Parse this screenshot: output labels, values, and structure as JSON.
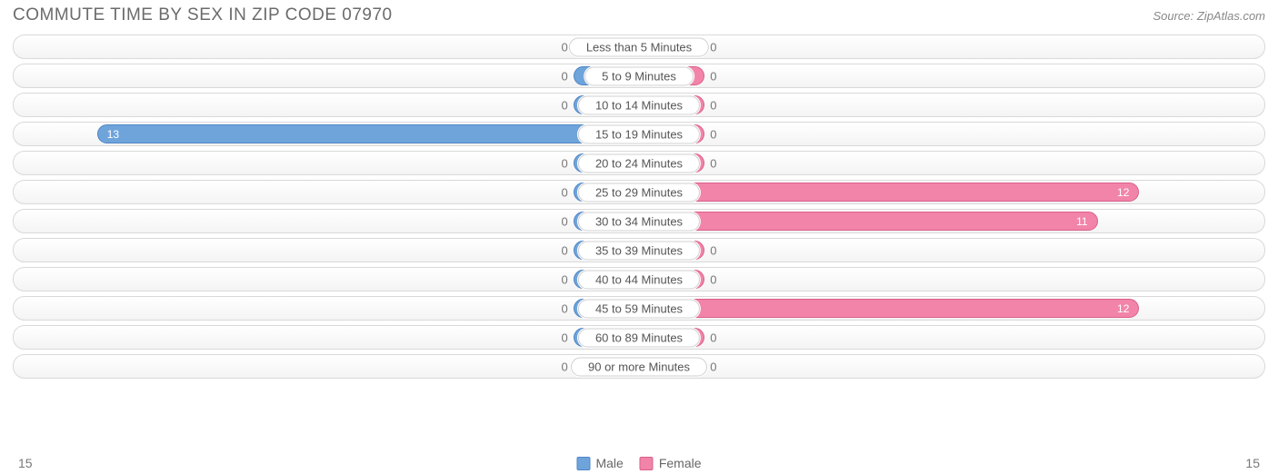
{
  "title": "COMMUTE TIME BY SEX IN ZIP CODE 07970",
  "source": "Source: ZipAtlas.com",
  "axis_max": 15,
  "axis_left_label": "15",
  "axis_right_label": "15",
  "colors": {
    "male_fill": "#6fa4db",
    "male_border": "#4f86c6",
    "female_fill": "#f284aa",
    "female_border": "#d85f8a",
    "row_border": "#d9d9d9",
    "label_bg": "#ffffff",
    "label_border": "#d0d0d0",
    "text": "#6b6b6b",
    "footer_text": "#777777"
  },
  "legend": [
    {
      "label": "Male",
      "color": "#6fa4db",
      "border": "#4f86c6"
    },
    {
      "label": "Female",
      "color": "#f284aa",
      "border": "#d85f8a"
    }
  ],
  "min_bar_pct": 10.5,
  "label_half_pct": 17,
  "rows": [
    {
      "label": "Less than 5 Minutes",
      "male": 0,
      "female": 0
    },
    {
      "label": "5 to 9 Minutes",
      "male": 0,
      "female": 0
    },
    {
      "label": "10 to 14 Minutes",
      "male": 0,
      "female": 0
    },
    {
      "label": "15 to 19 Minutes",
      "male": 13,
      "female": 0
    },
    {
      "label": "20 to 24 Minutes",
      "male": 0,
      "female": 0
    },
    {
      "label": "25 to 29 Minutes",
      "male": 0,
      "female": 12
    },
    {
      "label": "30 to 34 Minutes",
      "male": 0,
      "female": 11
    },
    {
      "label": "35 to 39 Minutes",
      "male": 0,
      "female": 0
    },
    {
      "label": "40 to 44 Minutes",
      "male": 0,
      "female": 0
    },
    {
      "label": "45 to 59 Minutes",
      "male": 0,
      "female": 12
    },
    {
      "label": "60 to 89 Minutes",
      "male": 0,
      "female": 0
    },
    {
      "label": "90 or more Minutes",
      "male": 0,
      "female": 0
    }
  ]
}
